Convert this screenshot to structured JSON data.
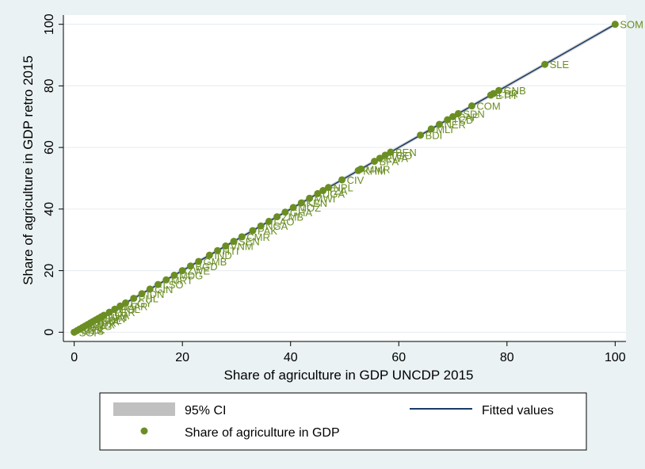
{
  "chart_data": {
    "type": "scatter",
    "title": "",
    "xlabel": "Share of agriculture in GDP UNCDP 2015",
    "ylabel": "Share of agriculture in GDP retro 2015",
    "xlim": [
      -2,
      102
    ],
    "ylim": [
      -3,
      103
    ],
    "xticks": [
      0,
      20,
      40,
      60,
      80,
      100
    ],
    "yticks": [
      0,
      20,
      40,
      60,
      80,
      100
    ],
    "grid": true,
    "legend": {
      "position": "bottom",
      "entries": [
        {
          "label": "95% CI",
          "kind": "area"
        },
        {
          "label": "Fitted values",
          "kind": "line"
        },
        {
          "label": "Share of agriculture in GDP",
          "kind": "marker"
        }
      ]
    },
    "colors": {
      "points": "#6b8e23",
      "labels": "#6b8e23",
      "fitted": "#1a3b66",
      "ci": "#c0c0c0",
      "plot_bg": "#ffffff",
      "outer_bg": "#eaf2f3",
      "grid": "#e6ecef"
    },
    "fitted_line": {
      "x": [
        0,
        100
      ],
      "y": [
        0,
        100
      ]
    },
    "series": [
      {
        "name": "Share of agriculture in GDP",
        "points": [
          {
            "x": 100,
            "y": 100,
            "label": "SOM"
          },
          {
            "x": 87,
            "y": 87,
            "label": "SLE"
          },
          {
            "x": 78.5,
            "y": 78.5,
            "label": "GNB"
          },
          {
            "x": 77,
            "y": 77,
            "label": "ETH"
          },
          {
            "x": 77.5,
            "y": 77.5,
            "label": "LBR"
          },
          {
            "x": 73.5,
            "y": 73.5,
            "label": "COM"
          },
          {
            "x": 71,
            "y": 71,
            "label": "SDN"
          },
          {
            "x": 70,
            "y": 70,
            "label": "CAF"
          },
          {
            "x": 69,
            "y": 69,
            "label": "TCD"
          },
          {
            "x": 67.5,
            "y": 67.5,
            "label": "NER"
          },
          {
            "x": 66,
            "y": 66,
            "label": "MLI"
          },
          {
            "x": 64,
            "y": 64,
            "label": "BDI"
          },
          {
            "x": 58.5,
            "y": 58.5,
            "label": "BEN"
          },
          {
            "x": 57.5,
            "y": 57.5,
            "label": "TGO"
          },
          {
            "x": 56.5,
            "y": 56.5,
            "label": "RWA"
          },
          {
            "x": 55.5,
            "y": 55.5,
            "label": "BFA"
          },
          {
            "x": 53,
            "y": 53,
            "label": "MMR"
          },
          {
            "x": 52.5,
            "y": 52.5,
            "label": "KHM"
          },
          {
            "x": 49.5,
            "y": 49.5,
            "label": "CIV"
          },
          {
            "x": 47,
            "y": 47,
            "label": "NPL"
          },
          {
            "x": 46,
            "y": 46,
            "label": "TZA"
          },
          {
            "x": 45,
            "y": 45,
            "label": "UGA"
          },
          {
            "x": 43.5,
            "y": 43.5,
            "label": "MWI"
          },
          {
            "x": 42,
            "y": 42,
            "label": "KEN"
          },
          {
            "x": 40.5,
            "y": 40.5,
            "label": "MOZ"
          },
          {
            "x": 39,
            "y": 39,
            "label": "GHA"
          },
          {
            "x": 37.5,
            "y": 37.5,
            "label": "ZMB"
          },
          {
            "x": 36,
            "y": 36,
            "label": "LAO"
          },
          {
            "x": 34.5,
            "y": 34.5,
            "label": "NGA"
          },
          {
            "x": 33,
            "y": 33,
            "label": "PAK"
          },
          {
            "x": 31,
            "y": 31,
            "label": "CMR"
          },
          {
            "x": 29.5,
            "y": 29.5,
            "label": "SEN"
          },
          {
            "x": 28,
            "y": 28,
            "label": "VNM"
          },
          {
            "x": 26.5,
            "y": 26.5,
            "label": "HTI"
          },
          {
            "x": 25,
            "y": 25,
            "label": "IND"
          },
          {
            "x": 23,
            "y": 23,
            "label": "GMB"
          },
          {
            "x": 21.5,
            "y": 21.5,
            "label": "BGD"
          },
          {
            "x": 20,
            "y": 20,
            "label": "ZWE"
          },
          {
            "x": 18.5,
            "y": 18.5,
            "label": "MDG"
          },
          {
            "x": 17,
            "y": 17,
            "label": "MRT"
          },
          {
            "x": 15.5,
            "y": 15.5,
            "label": "LSO"
          },
          {
            "x": 14,
            "y": 14,
            "label": "GIN"
          },
          {
            "x": 12.5,
            "y": 12.5,
            "label": "IDN"
          },
          {
            "x": 11,
            "y": 11,
            "label": "PHL"
          },
          {
            "x": 9.5,
            "y": 9.5,
            "label": "EGY"
          },
          {
            "x": 8.5,
            "y": 8.5,
            "label": "MAR"
          },
          {
            "x": 7.5,
            "y": 7.5,
            "label": "BOL"
          },
          {
            "x": 6.5,
            "y": 6.5,
            "label": "PER"
          },
          {
            "x": 5.5,
            "y": 5.5,
            "label": "THA"
          },
          {
            "x": 5,
            "y": 5,
            "label": "TUN"
          },
          {
            "x": 4.5,
            "y": 4.5,
            "label": "CHN"
          },
          {
            "x": 4,
            "y": 4,
            "label": "COL"
          },
          {
            "x": 3.5,
            "y": 3.5,
            "label": "BRA"
          },
          {
            "x": 3,
            "y": 3,
            "label": "TUR"
          },
          {
            "x": 2.5,
            "y": 2.5,
            "label": "MEX"
          },
          {
            "x": 2,
            "y": 2,
            "label": "ARG"
          },
          {
            "x": 1.5,
            "y": 1.5,
            "label": "ZAF"
          },
          {
            "x": 1,
            "y": 1,
            "label": "CHL"
          },
          {
            "x": 0.5,
            "y": 0.5,
            "label": "MYS"
          },
          {
            "x": 0,
            "y": 0,
            "label": "SGP"
          }
        ]
      }
    ]
  }
}
